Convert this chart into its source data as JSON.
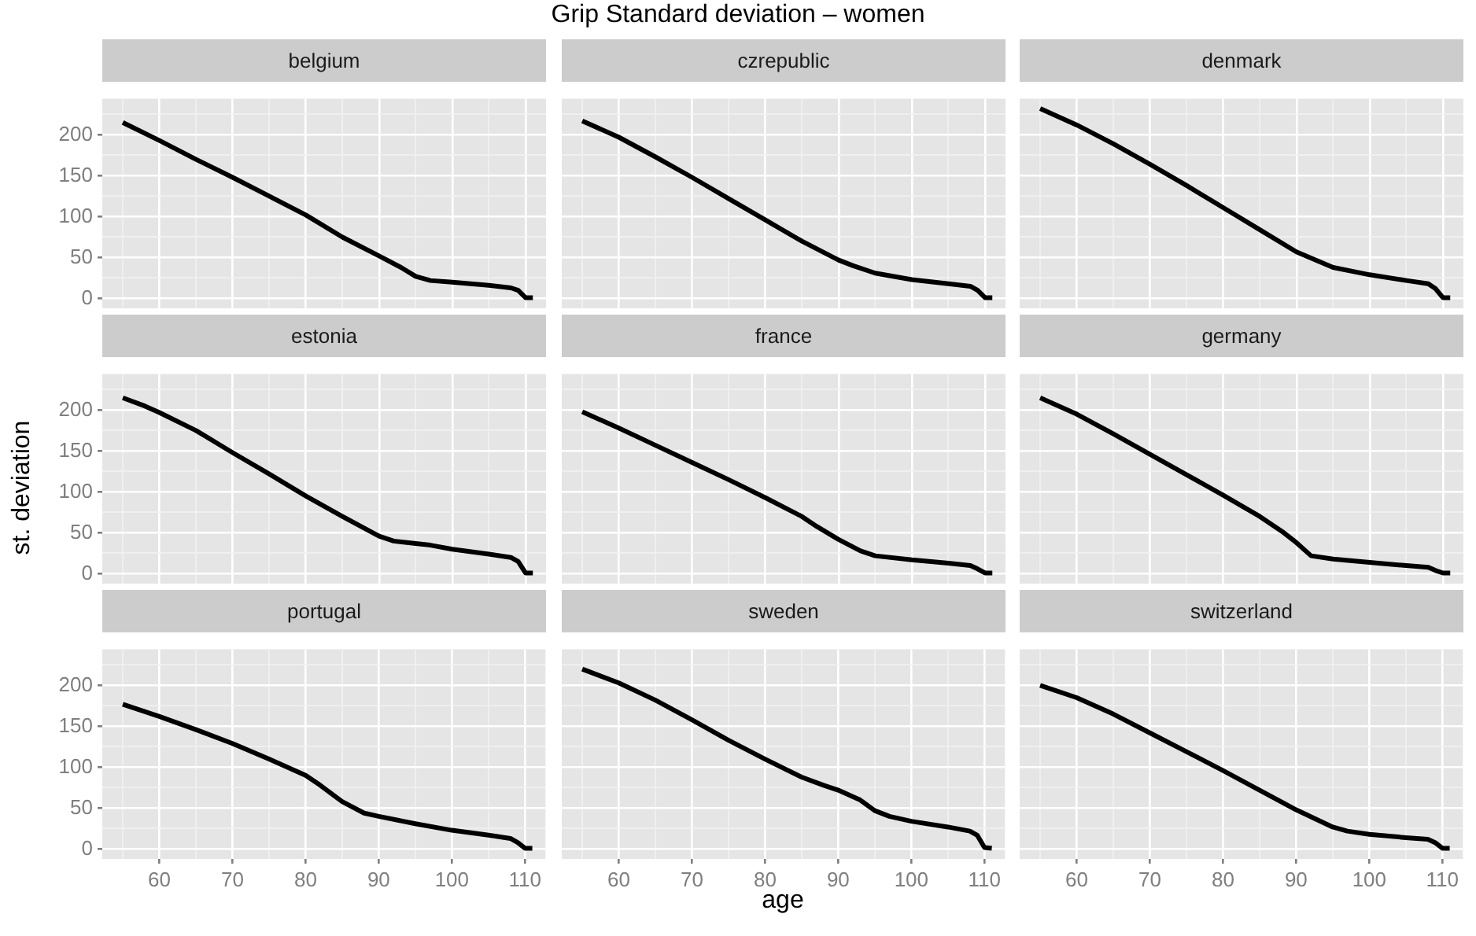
{
  "chart_data": [
    {
      "type": "line",
      "title": "belgium",
      "annotations": [
        "Grip Standard deviation – women"
      ],
      "x": [
        55,
        60,
        65,
        70,
        75,
        80,
        85,
        90,
        93,
        95,
        97,
        100,
        105,
        108,
        109,
        110,
        111
      ],
      "series": [
        {
          "color": "#000000",
          "values": [
            215,
            193,
            170,
            148,
            125,
            102,
            75,
            52,
            38,
            27,
            22,
            20,
            16,
            13,
            10,
            1,
            1
          ]
        }
      ],
      "xlim": [
        52.2,
        112.8
      ],
      "ylim": [
        -12,
        244
      ],
      "xticks": [
        {
          "value": 55,
          "label": null
        },
        60,
        {
          "value": 65,
          "label": null
        },
        70,
        {
          "value": 75,
          "label": null
        },
        80,
        {
          "value": 85,
          "label": null
        },
        90,
        {
          "value": 95,
          "label": null
        },
        100,
        {
          "value": 105,
          "label": null
        },
        110
      ],
      "yticks": [
        0,
        {
          "value": 25,
          "label": null
        },
        50,
        {
          "value": 75,
          "label": null
        },
        100,
        {
          "value": 125,
          "label": null
        },
        150,
        {
          "value": 175,
          "label": null
        },
        200,
        {
          "value": 225,
          "label": null
        }
      ],
      "grid": true,
      "tick_labels": "y"
    },
    {
      "type": "line",
      "title": "czrepublic",
      "x": [
        55,
        60,
        65,
        70,
        75,
        80,
        85,
        90,
        92,
        95,
        100,
        105,
        108,
        109,
        110,
        111
      ],
      "series": [
        {
          "color": "#000000",
          "values": [
            217,
            197,
            173,
            148,
            122,
            96,
            70,
            47,
            40,
            31,
            23,
            18,
            15,
            10,
            1,
            1
          ]
        }
      ],
      "xlim": [
        52.2,
        112.8
      ],
      "ylim": [
        -12,
        244
      ],
      "xticks": [
        {
          "value": 55,
          "label": null
        },
        60,
        {
          "value": 65,
          "label": null
        },
        70,
        {
          "value": 75,
          "label": null
        },
        80,
        {
          "value": 85,
          "label": null
        },
        90,
        {
          "value": 95,
          "label": null
        },
        100,
        {
          "value": 105,
          "label": null
        },
        110
      ],
      "yticks": [
        0,
        {
          "value": 25,
          "label": null
        },
        50,
        {
          "value": 75,
          "label": null
        },
        100,
        {
          "value": 125,
          "label": null
        },
        150,
        {
          "value": 175,
          "label": null
        },
        200,
        {
          "value": 225,
          "label": null
        }
      ],
      "grid": true,
      "tick_labels": false
    },
    {
      "type": "line",
      "title": "denmark",
      "x": [
        55,
        60,
        65,
        70,
        75,
        80,
        85,
        90,
        95,
        100,
        105,
        108,
        109,
        110,
        111
      ],
      "series": [
        {
          "color": "#000000",
          "values": [
            232,
            212,
            189,
            164,
            138,
            111,
            84,
            57,
            38,
            29,
            22,
            18,
            12,
            1,
            1
          ]
        }
      ],
      "xlim": [
        52.2,
        112.8
      ],
      "ylim": [
        -12,
        244
      ],
      "xticks": [
        {
          "value": 55,
          "label": null
        },
        60,
        {
          "value": 65,
          "label": null
        },
        70,
        {
          "value": 75,
          "label": null
        },
        80,
        {
          "value": 85,
          "label": null
        },
        90,
        {
          "value": 95,
          "label": null
        },
        100,
        {
          "value": 105,
          "label": null
        },
        110
      ],
      "yticks": [
        0,
        {
          "value": 25,
          "label": null
        },
        50,
        {
          "value": 75,
          "label": null
        },
        100,
        {
          "value": 125,
          "label": null
        },
        150,
        {
          "value": 175,
          "label": null
        },
        200,
        {
          "value": 225,
          "label": null
        }
      ],
      "grid": true,
      "tick_labels": false
    },
    {
      "type": "line",
      "title": "estonia",
      "ylabel": "st. deviation",
      "x": [
        55,
        58,
        60,
        65,
        70,
        75,
        80,
        85,
        90,
        92,
        95,
        97,
        100,
        105,
        108,
        109,
        110,
        111
      ],
      "series": [
        {
          "color": "#000000",
          "values": [
            215,
            205,
            197,
            175,
            148,
            122,
            95,
            70,
            46,
            40,
            37,
            35,
            30,
            24,
            20,
            15,
            1,
            1
          ]
        }
      ],
      "xlim": [
        52.2,
        112.8
      ],
      "ylim": [
        -12,
        244
      ],
      "xticks": [
        {
          "value": 55,
          "label": null
        },
        60,
        {
          "value": 65,
          "label": null
        },
        70,
        {
          "value": 75,
          "label": null
        },
        80,
        {
          "value": 85,
          "label": null
        },
        90,
        {
          "value": 95,
          "label": null
        },
        100,
        {
          "value": 105,
          "label": null
        },
        110
      ],
      "yticks": [
        0,
        {
          "value": 25,
          "label": null
        },
        50,
        {
          "value": 75,
          "label": null
        },
        100,
        {
          "value": 125,
          "label": null
        },
        150,
        {
          "value": 175,
          "label": null
        },
        200,
        {
          "value": 225,
          "label": null
        }
      ],
      "grid": true,
      "tick_labels": "y"
    },
    {
      "type": "line",
      "title": "france",
      "x": [
        55,
        60,
        65,
        70,
        75,
        80,
        85,
        87,
        90,
        93,
        95,
        100,
        105,
        108,
        109,
        110,
        111
      ],
      "series": [
        {
          "color": "#000000",
          "values": [
            198,
            178,
            157,
            136,
            115,
            93,
            70,
            58,
            42,
            28,
            22,
            17,
            13,
            10,
            6,
            1,
            1
          ]
        }
      ],
      "xlim": [
        52.2,
        112.8
      ],
      "ylim": [
        -12,
        244
      ],
      "xticks": [
        {
          "value": 55,
          "label": null
        },
        60,
        {
          "value": 65,
          "label": null
        },
        70,
        {
          "value": 75,
          "label": null
        },
        80,
        {
          "value": 85,
          "label": null
        },
        90,
        {
          "value": 95,
          "label": null
        },
        100,
        {
          "value": 105,
          "label": null
        },
        110
      ],
      "yticks": [
        0,
        {
          "value": 25,
          "label": null
        },
        50,
        {
          "value": 75,
          "label": null
        },
        100,
        {
          "value": 125,
          "label": null
        },
        150,
        {
          "value": 175,
          "label": null
        },
        200,
        {
          "value": 225,
          "label": null
        }
      ],
      "grid": true,
      "tick_labels": false
    },
    {
      "type": "line",
      "title": "germany",
      "x": [
        55,
        60,
        65,
        70,
        75,
        80,
        85,
        88,
        90,
        92,
        95,
        100,
        105,
        108,
        109,
        110,
        111
      ],
      "series": [
        {
          "color": "#000000",
          "values": [
            215,
            195,
            171,
            146,
            121,
            96,
            70,
            52,
            38,
            22,
            18,
            14,
            10,
            8,
            4,
            1,
            1
          ]
        }
      ],
      "xlim": [
        52.2,
        112.8
      ],
      "ylim": [
        -12,
        244
      ],
      "xticks": [
        {
          "value": 55,
          "label": null
        },
        60,
        {
          "value": 65,
          "label": null
        },
        70,
        {
          "value": 75,
          "label": null
        },
        80,
        {
          "value": 85,
          "label": null
        },
        90,
        {
          "value": 95,
          "label": null
        },
        100,
        {
          "value": 105,
          "label": null
        },
        110
      ],
      "yticks": [
        0,
        {
          "value": 25,
          "label": null
        },
        50,
        {
          "value": 75,
          "label": null
        },
        100,
        {
          "value": 125,
          "label": null
        },
        150,
        {
          "value": 175,
          "label": null
        },
        200,
        {
          "value": 225,
          "label": null
        }
      ],
      "grid": true,
      "tick_labels": false
    },
    {
      "type": "line",
      "title": "portugal",
      "x": [
        55,
        60,
        65,
        70,
        75,
        80,
        82,
        85,
        88,
        90,
        95,
        100,
        105,
        108,
        109,
        110,
        111
      ],
      "series": [
        {
          "color": "#000000",
          "values": [
            177,
            162,
            146,
            129,
            110,
            90,
            78,
            58,
            44,
            40,
            31,
            23,
            17,
            13,
            8,
            1,
            1
          ]
        }
      ],
      "xlim": [
        52.2,
        112.8
      ],
      "ylim": [
        -12,
        244
      ],
      "xticks": [
        {
          "value": 55,
          "label": null
        },
        60,
        {
          "value": 65,
          "label": null
        },
        70,
        {
          "value": 75,
          "label": null
        },
        80,
        {
          "value": 85,
          "label": null
        },
        90,
        {
          "value": 95,
          "label": null
        },
        100,
        {
          "value": 105,
          "label": null
        },
        110
      ],
      "yticks": [
        0,
        {
          "value": 25,
          "label": null
        },
        50,
        {
          "value": 75,
          "label": null
        },
        100,
        {
          "value": 125,
          "label": null
        },
        150,
        {
          "value": 175,
          "label": null
        },
        200,
        {
          "value": 225,
          "label": null
        }
      ],
      "grid": true
    },
    {
      "type": "line",
      "title": "sweden",
      "xlabel": "age",
      "x": [
        55,
        60,
        65,
        70,
        75,
        80,
        85,
        88,
        90,
        93,
        95,
        97,
        100,
        105,
        108,
        109,
        110,
        111
      ],
      "series": [
        {
          "color": "#000000",
          "values": [
            220,
            203,
            182,
            158,
            133,
            110,
            88,
            78,
            72,
            60,
            47,
            40,
            34,
            27,
            22,
            17,
            2,
            1
          ]
        }
      ],
      "xlim": [
        52.2,
        112.8
      ],
      "ylim": [
        -12,
        244
      ],
      "xticks": [
        {
          "value": 55,
          "label": null
        },
        60,
        {
          "value": 65,
          "label": null
        },
        70,
        {
          "value": 75,
          "label": null
        },
        80,
        {
          "value": 85,
          "label": null
        },
        90,
        {
          "value": 95,
          "label": null
        },
        100,
        {
          "value": 105,
          "label": null
        },
        110
      ],
      "yticks": [
        0,
        {
          "value": 25,
          "label": null
        },
        50,
        {
          "value": 75,
          "label": null
        },
        100,
        {
          "value": 125,
          "label": null
        },
        150,
        {
          "value": 175,
          "label": null
        },
        200,
        {
          "value": 225,
          "label": null
        }
      ],
      "grid": true,
      "tick_labels": "x"
    },
    {
      "type": "line",
      "title": "switzerland",
      "x": [
        55,
        60,
        65,
        70,
        75,
        80,
        85,
        90,
        95,
        97,
        100,
        105,
        108,
        109,
        110,
        111
      ],
      "series": [
        {
          "color": "#000000",
          "values": [
            200,
            185,
            165,
            142,
            119,
            96,
            72,
            48,
            27,
            22,
            18,
            14,
            12,
            8,
            1,
            1
          ]
        }
      ],
      "xlim": [
        52.2,
        112.8
      ],
      "ylim": [
        -12,
        244
      ],
      "xticks": [
        {
          "value": 55,
          "label": null
        },
        60,
        {
          "value": 65,
          "label": null
        },
        70,
        {
          "value": 75,
          "label": null
        },
        80,
        {
          "value": 85,
          "label": null
        },
        90,
        {
          "value": 95,
          "label": null
        },
        100,
        {
          "value": 105,
          "label": null
        },
        110
      ],
      "yticks": [
        0,
        {
          "value": 25,
          "label": null
        },
        50,
        {
          "value": 75,
          "label": null
        },
        100,
        {
          "value": 125,
          "label": null
        },
        150,
        {
          "value": 175,
          "label": null
        },
        200,
        {
          "value": 225,
          "label": null
        }
      ],
      "grid": true,
      "tick_labels": "x"
    }
  ]
}
